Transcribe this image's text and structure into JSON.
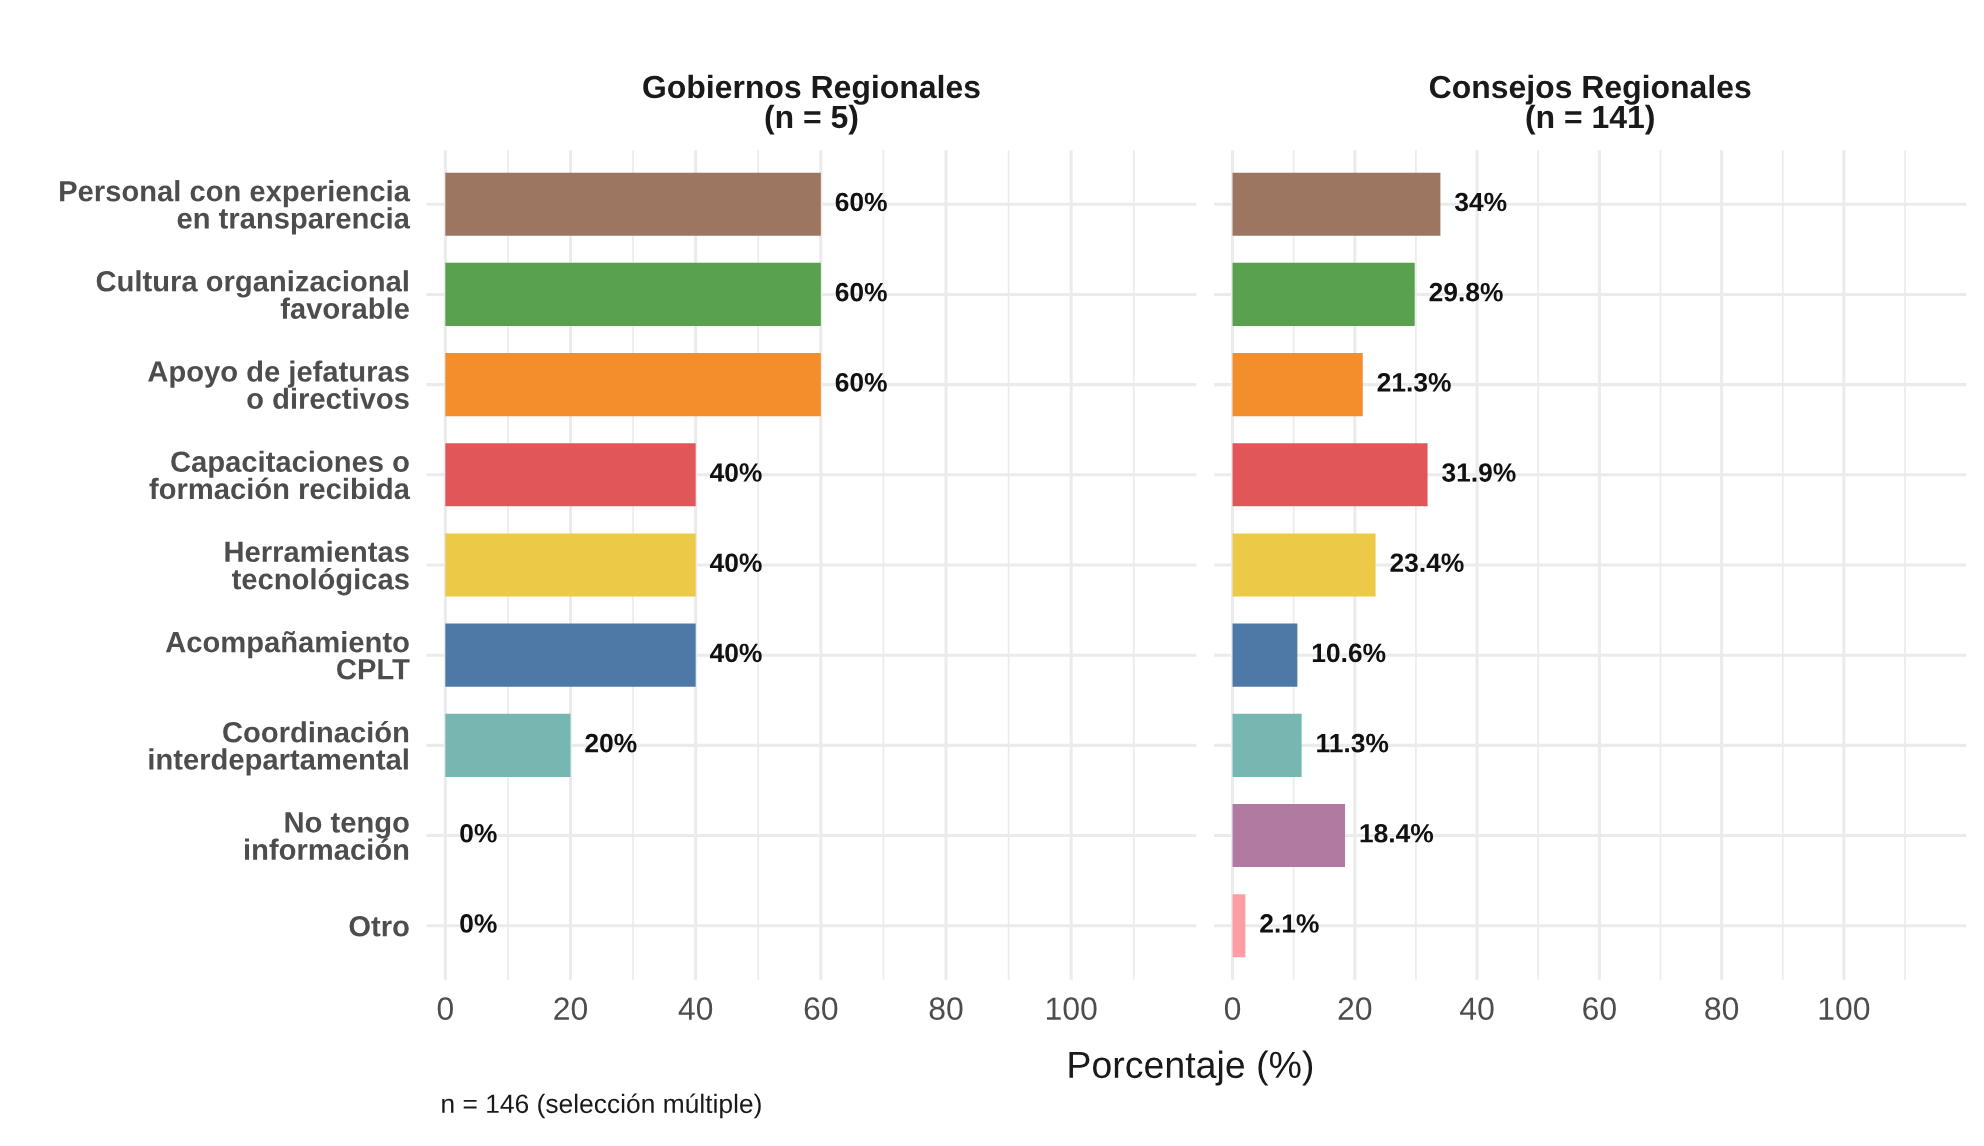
{
  "chart_data": [
    {
      "type": "bar",
      "orientation": "horizontal",
      "title": "Gobiernos Regionales\n(n = 5)",
      "xlabel": "Porcentaje (%)",
      "categories": [
        "Personal con experiencia\nen transparencia",
        "Cultura organizacional\nfavorable",
        "Apoyo de jefaturas\no directivos",
        "Capacitaciones o\nformación recibida",
        "Herramientas\ntecnológicas",
        "Acompañamiento\nCPLT",
        "Coordinación\ninterdepartamental",
        "No tengo\ninformación",
        "Otro"
      ],
      "values": [
        60,
        60,
        60,
        40,
        40,
        40,
        20,
        0,
        0
      ],
      "value_labels": [
        "60%",
        "60%",
        "60%",
        "40%",
        "40%",
        "40%",
        "20%",
        "0%",
        "0%"
      ],
      "colors": [
        "#9c7660",
        "#59a14f",
        "#f28e2b",
        "#e15759",
        "#edc948",
        "#4e79a7",
        "#76b7b2",
        "#b07aa1",
        "#ff9da7"
      ],
      "xlim": [
        -3,
        120
      ],
      "xticks": [
        0,
        20,
        40,
        60,
        80,
        100
      ],
      "grid": true,
      "annotations": [
        "n = 146 (selección múltiple)"
      ]
    },
    {
      "type": "bar",
      "orientation": "horizontal",
      "title": "Consejos Regionales\n(n = 141)",
      "categories": [
        null,
        null,
        null,
        null,
        null,
        null,
        null,
        null,
        null
      ],
      "values": [
        34,
        29.8,
        21.3,
        31.9,
        23.4,
        10.6,
        11.3,
        18.4,
        2.1
      ],
      "value_labels": [
        "34%",
        "29.8%",
        "21.3%",
        "31.9%",
        "23.4%",
        "10.6%",
        "11.3%",
        "18.4%",
        "2.1%"
      ],
      "colors": [
        "#9c7660",
        "#59a14f",
        "#f28e2b",
        "#e15759",
        "#edc948",
        "#4e79a7",
        "#76b7b2",
        "#b07aa1",
        "#ff9da7"
      ],
      "xlim": [
        -3,
        120
      ],
      "xticks": [
        0,
        20,
        40,
        60,
        80,
        100
      ],
      "grid": true,
      "tick_labels": "x"
    }
  ]
}
